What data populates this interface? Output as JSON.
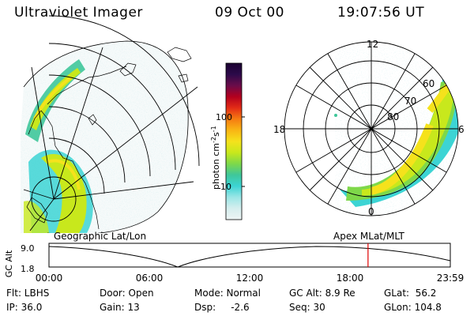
{
  "header": {
    "title": "Ultraviolet Imager",
    "date": "09 Oct 00",
    "time": "19:07:56 UT"
  },
  "colorbar": {
    "label_prefix": "photon cm",
    "label_exp1": "-2",
    "label_mid": "s",
    "label_exp2": "-1",
    "ticks": [
      "100",
      "10"
    ],
    "colors": [
      "#1a0030",
      "#2c0a4a",
      "#6a0c4a",
      "#b3001e",
      "#e32c16",
      "#f57c12",
      "#f9b514",
      "#f5e21c",
      "#c8e81c",
      "#7ed84a",
      "#3fc79a",
      "#3cd4d4",
      "#9ce6e6",
      "#d5eeee",
      "#eef5f5"
    ]
  },
  "left_map": {
    "projection_label": "Geographic Lat/Lon"
  },
  "polar_plot": {
    "projection_label": "Apex MLat/MLT",
    "mlt_labels": {
      "top": "12",
      "left": "18",
      "right": "6",
      "bottom": "0"
    },
    "lat_labels": [
      "60",
      "70",
      "80"
    ]
  },
  "altitude_strip": {
    "axis_label": "GC Alt",
    "y_ticks": [
      "9.0",
      "1.8"
    ],
    "x_ticks": [
      "00:00",
      "06:00",
      "12:00",
      "18:00",
      "23:59"
    ],
    "cursor_fraction": 0.795
  },
  "footer": {
    "row1": [
      "Flt: LBHS",
      "Door: Open",
      "Mode: Normal",
      "GC Alt: 8.9 Re",
      "GLat:  56.2"
    ],
    "row2": [
      "IP: 36.0",
      "Gain: 13",
      "Dsp:     -2.6",
      "Seq: 30",
      "GLon: 104.8"
    ]
  }
}
